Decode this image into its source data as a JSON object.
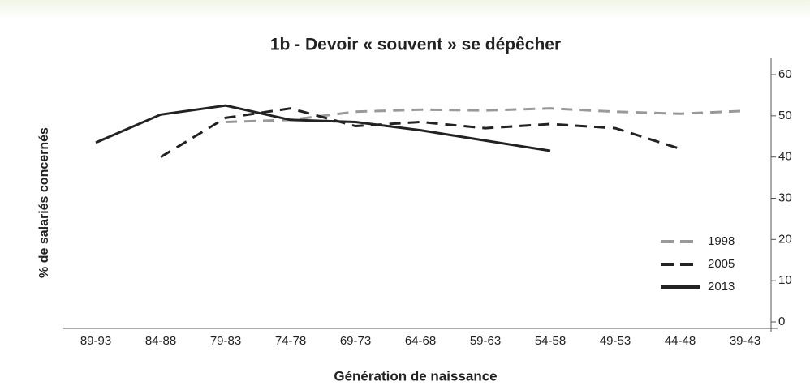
{
  "chart_data": {
    "type": "line",
    "title": "1b - Devoir « souvent » se dépêcher",
    "x_label": "Génération de naissance",
    "y_label": "% de salariés concernés",
    "categories": [
      "89-93",
      "84-88",
      "79-83",
      "74-78",
      "69-73",
      "64-68",
      "59-63",
      "54-58",
      "49-53",
      "44-48",
      "39-43"
    ],
    "series": [
      {
        "name": "1998",
        "color": "#999999",
        "dash": "dashed",
        "values": [
          null,
          null,
          48.5,
          49,
          51,
          51.5,
          51.3,
          51.8,
          51,
          50.5,
          51.2
        ]
      },
      {
        "name": "2005",
        "color": "#222222",
        "dash": "dashed",
        "values": [
          null,
          40,
          49.5,
          51.8,
          47.5,
          48.5,
          47,
          48,
          47,
          42,
          null
        ]
      },
      {
        "name": "2013",
        "color": "#222222",
        "dash": "solid",
        "values": [
          43.5,
          50.3,
          52.5,
          49,
          48.5,
          46.5,
          44,
          41.5,
          null,
          null,
          null
        ]
      }
    ],
    "ylim": [
      0,
      60
    ],
    "yticks": [
      0,
      10,
      20,
      30,
      40,
      50,
      60
    ],
    "y_axis_side": "right",
    "legend": "lower right"
  }
}
